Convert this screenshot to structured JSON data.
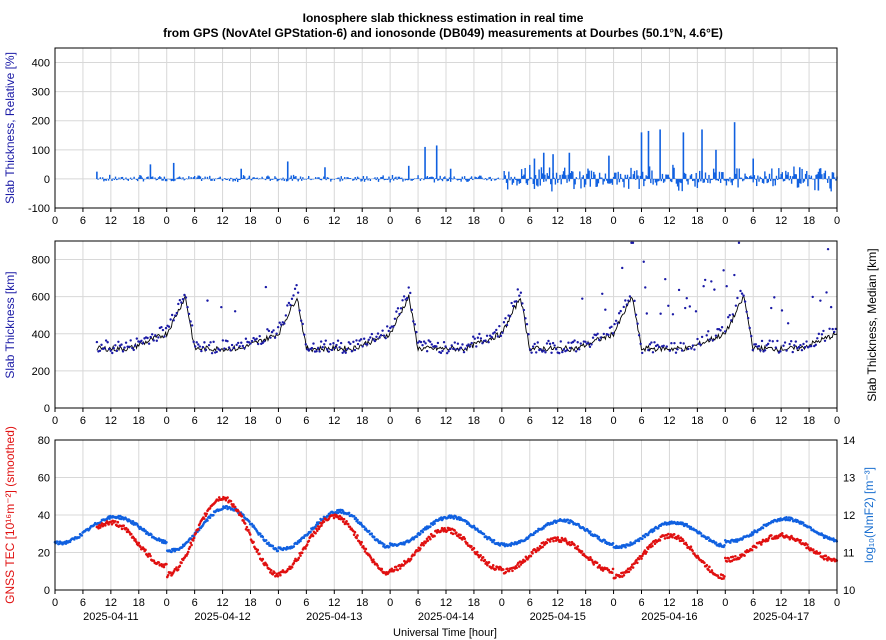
{
  "title_line1": "Ionosphere slab thickness estimation in real time",
  "title_line2": "from GPS (NovAtel GPStation-6) and ionosonde (DB049) measurements at Dourbes (50.1°N, 4.6°E)",
  "xlabel": "Universal Time [hour]",
  "dates": [
    "2025-04-11",
    "2025-04-12",
    "2025-04-13",
    "2025-04-14",
    "2025-04-15",
    "2025-04-16",
    "2025-04-17"
  ],
  "hour_ticks": [
    "0",
    "6",
    "12",
    "18"
  ],
  "colors": {
    "blue": "#1060e0",
    "red": "#e01010",
    "black": "#000000",
    "axis_blue": "#1a1aa6",
    "grid": "#d8d8d8"
  },
  "chart_data": [
    {
      "type": "bar",
      "name": "relative",
      "ylabel": "Slab Thickness, Relative [%]",
      "ylim": [
        -100,
        450
      ],
      "yticks": [
        -100,
        0,
        100,
        200,
        300,
        400
      ],
      "xlim_hours": [
        0,
        168
      ],
      "data_start_hour": 9,
      "spikes": [
        {
          "x": 9,
          "y": 25
        },
        {
          "x": 20.5,
          "y": 50
        },
        {
          "x": 25.5,
          "y": 55
        },
        {
          "x": 40,
          "y": 35
        },
        {
          "x": 50,
          "y": 60
        },
        {
          "x": 58,
          "y": 40
        },
        {
          "x": 76,
          "y": 45
        },
        {
          "x": 79.5,
          "y": 110
        },
        {
          "x": 82,
          "y": 115
        },
        {
          "x": 85,
          "y": 35
        },
        {
          "x": 103,
          "y": 70
        },
        {
          "x": 105,
          "y": 90
        },
        {
          "x": 107,
          "y": 85
        },
        {
          "x": 110.5,
          "y": 90
        },
        {
          "x": 119,
          "y": 80
        },
        {
          "x": 126,
          "y": 160
        },
        {
          "x": 127.5,
          "y": 165
        },
        {
          "x": 130,
          "y": 170
        },
        {
          "x": 135,
          "y": 160
        },
        {
          "x": 139,
          "y": 170
        },
        {
          "x": 142,
          "y": 100
        },
        {
          "x": 146,
          "y": 195
        },
        {
          "x": 150,
          "y": 70
        },
        {
          "x": 160,
          "y": 40
        },
        {
          "x": 164,
          "y": -40
        }
      ]
    },
    {
      "type": "line",
      "name": "slab",
      "ylabel": "Slab Thickness [km]",
      "y2label": "Slab Thickness, Median [km]",
      "ylim": [
        0,
        900
      ],
      "yticks": [
        0,
        200,
        400,
        600,
        800
      ],
      "series": [
        {
          "style": "line",
          "color": "#000000",
          "diurnal": {
            "night": 320,
            "day": 400,
            "peak": 600,
            "peak_hour": 3
          }
        },
        {
          "style": "points",
          "color": "#1a1aa6",
          "diurnal": {
            "night": 330,
            "day": 420,
            "peak": 640,
            "peak_hour": 3
          }
        }
      ]
    },
    {
      "type": "scatter",
      "name": "tec",
      "ylabel": "GNSS TEC [10¹⁶m⁻²] (smoothed)",
      "y2label": "log₁₀(NmF2) [m⁻³]",
      "ylim": [
        0,
        80
      ],
      "yticks": [
        0,
        20,
        40,
        60,
        80
      ],
      "y2lim": [
        10,
        14
      ],
      "y2ticks": [
        10,
        11,
        12,
        13,
        14
      ],
      "tec_daily_max": [
        36,
        49,
        39,
        32,
        27,
        29,
        29
      ],
      "tec_daily_min": [
        13,
        8,
        9,
        11,
        10,
        7,
        16
      ],
      "nmf2_daily_max": [
        11.95,
        12.2,
        12.1,
        11.95,
        11.85,
        11.8,
        11.9
      ],
      "nmf2_daily_min": [
        11.25,
        11.05,
        11.1,
        11.2,
        11.2,
        11.15,
        11.3
      ]
    }
  ]
}
